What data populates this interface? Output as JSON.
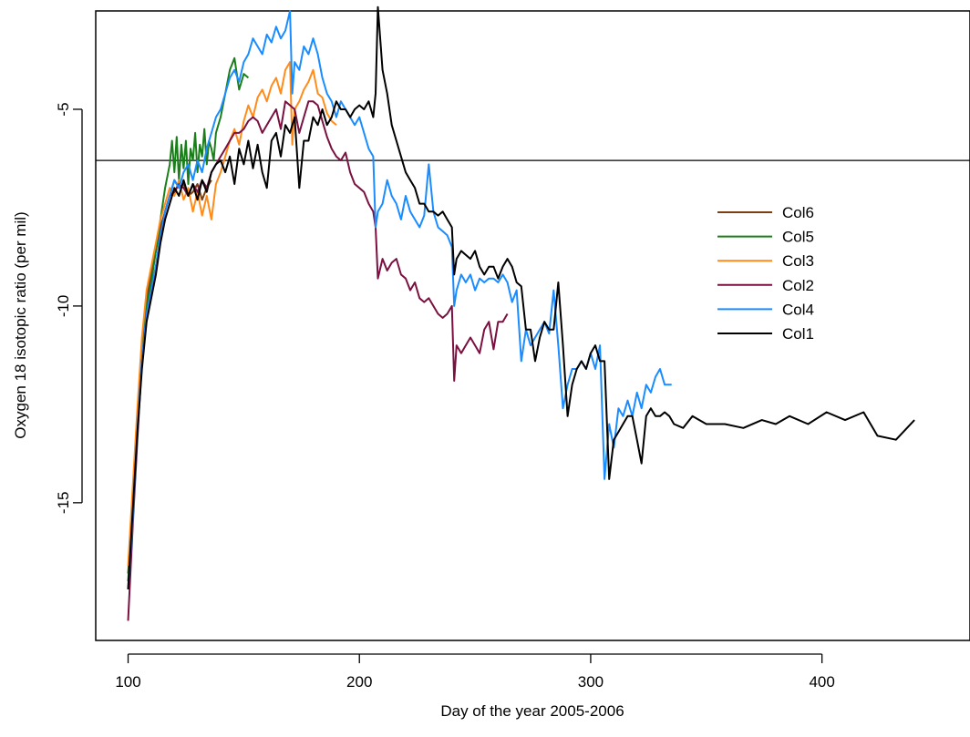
{
  "chart_data": {
    "type": "line",
    "title": "",
    "xlabel": "Day of the year 2005-2006",
    "ylabel": "Oxygen 18 isotopic ratio (per mil)",
    "xlim": [
      86,
      464
    ],
    "ylim": [
      -18.5,
      -2.5
    ],
    "xticks": [
      100,
      200,
      300,
      400
    ],
    "yticks": [
      -15,
      -10,
      -5
    ],
    "grid": false,
    "legend_position": "right",
    "reference_line": {
      "y": -6.3
    },
    "series": [
      {
        "name": "Col6",
        "color": "#7b3f12",
        "x": [
          100,
          102,
          104,
          106,
          108,
          110,
          112,
          114,
          116,
          118,
          120,
          122,
          124,
          126,
          128,
          130,
          132,
          134,
          136
        ],
        "y": [
          -16.8,
          -15.0,
          -12.8,
          -11.0,
          -9.8,
          -9.2,
          -8.6,
          -8.0,
          -7.6,
          -7.2,
          -6.8,
          -7.0,
          -6.9,
          -7.2,
          -7.1,
          -6.9,
          -7.3,
          -7.0,
          -6.8
        ]
      },
      {
        "name": "Col5",
        "color": "#1a7f1a",
        "x": [
          100,
          102,
          104,
          106,
          108,
          110,
          112,
          114,
          116,
          118,
          119,
          120,
          121,
          122,
          123,
          124,
          125,
          126,
          127,
          128,
          129,
          130,
          131,
          132,
          133,
          134,
          135,
          136,
          137,
          138,
          140,
          142,
          144,
          146,
          148,
          150,
          152
        ],
        "y": [
          -17.0,
          -15.2,
          -13.0,
          -11.2,
          -10.0,
          -9.4,
          -8.6,
          -7.8,
          -7.0,
          -6.4,
          -5.8,
          -6.6,
          -5.7,
          -6.8,
          -5.9,
          -6.5,
          -5.8,
          -6.9,
          -6.0,
          -6.3,
          -5.6,
          -6.6,
          -5.9,
          -6.2,
          -5.5,
          -6.4,
          -5.8,
          -6.0,
          -6.3,
          -5.6,
          -5.2,
          -4.6,
          -4.0,
          -3.7,
          -4.5,
          -4.1,
          -4.2
        ]
      },
      {
        "name": "Col3",
        "color": "#ff8c1a",
        "x": [
          100,
          102,
          104,
          106,
          108,
          110,
          112,
          114,
          116,
          118,
          120,
          122,
          124,
          126,
          128,
          130,
          132,
          134,
          136,
          138,
          140,
          142,
          144,
          146,
          148,
          150,
          152,
          154,
          156,
          158,
          160,
          162,
          164,
          166,
          168,
          170,
          171,
          172,
          174,
          176,
          178,
          180,
          182,
          184,
          186,
          188,
          190
        ],
        "y": [
          -16.6,
          -14.6,
          -12.6,
          -10.8,
          -9.6,
          -9.0,
          -8.4,
          -7.8,
          -7.4,
          -7.0,
          -7.2,
          -6.8,
          -7.3,
          -7.0,
          -7.6,
          -7.1,
          -7.7,
          -7.2,
          -7.8,
          -6.9,
          -6.6,
          -6.2,
          -5.8,
          -5.5,
          -5.9,
          -5.3,
          -4.9,
          -5.2,
          -4.7,
          -4.5,
          -4.8,
          -4.4,
          -4.2,
          -4.6,
          -4.0,
          -3.8,
          -5.9,
          -5.0,
          -4.8,
          -4.5,
          -4.3,
          -4.0,
          -4.6,
          -4.7,
          -5.1,
          -5.3,
          -5.4
        ]
      },
      {
        "name": "Col2",
        "color": "#7a1040",
        "x": [
          100,
          102,
          104,
          106,
          108,
          110,
          112,
          114,
          116,
          118,
          120,
          122,
          124,
          126,
          128,
          130,
          132,
          134,
          136,
          138,
          140,
          142,
          144,
          146,
          148,
          150,
          152,
          154,
          156,
          158,
          160,
          162,
          164,
          166,
          168,
          170,
          172,
          174,
          176,
          178,
          180,
          182,
          184,
          186,
          188,
          190,
          192,
          194,
          196,
          198,
          200,
          202,
          204,
          206,
          207,
          208,
          210,
          212,
          214,
          216,
          218,
          220,
          222,
          224,
          226,
          228,
          230,
          232,
          234,
          236,
          238,
          240,
          241,
          242,
          244,
          246,
          248,
          250,
          252,
          254,
          256,
          258,
          260,
          262,
          264
        ],
        "y": [
          -18.0,
          -15.6,
          -13.4,
          -11.4,
          -10.2,
          -9.6,
          -9.0,
          -8.2,
          -7.6,
          -7.2,
          -7.1,
          -6.9,
          -7.0,
          -7.2,
          -6.9,
          -7.1,
          -6.8,
          -7.0,
          -6.6,
          -6.4,
          -6.2,
          -6.0,
          -5.8,
          -5.6,
          -5.6,
          -5.5,
          -5.3,
          -5.2,
          -5.3,
          -5.6,
          -5.4,
          -5.2,
          -5.0,
          -5.5,
          -4.8,
          -4.9,
          -5.0,
          -5.6,
          -5.2,
          -4.8,
          -4.8,
          -4.9,
          -5.3,
          -5.7,
          -6.0,
          -6.2,
          -6.3,
          -6.1,
          -6.6,
          -6.9,
          -7.0,
          -7.1,
          -7.4,
          -7.6,
          -8.0,
          -9.3,
          -8.8,
          -9.1,
          -8.9,
          -8.8,
          -9.2,
          -9.3,
          -9.6,
          -9.4,
          -9.8,
          -9.9,
          -9.8,
          -10.0,
          -10.2,
          -10.3,
          -10.2,
          -10.0,
          -11.9,
          -11.0,
          -11.2,
          -11.0,
          -10.8,
          -11.0,
          -11.2,
          -10.6,
          -10.4,
          -11.1,
          -10.4,
          -10.4,
          -10.2
        ]
      },
      {
        "name": "Col4",
        "color": "#1a8cff",
        "x": [
          100,
          102,
          104,
          106,
          108,
          110,
          112,
          114,
          116,
          118,
          120,
          122,
          124,
          126,
          128,
          130,
          132,
          134,
          136,
          138,
          140,
          142,
          144,
          146,
          148,
          150,
          152,
          154,
          156,
          158,
          160,
          162,
          164,
          166,
          168,
          170,
          171,
          172,
          174,
          176,
          178,
          180,
          182,
          184,
          186,
          188,
          190,
          192,
          194,
          196,
          198,
          200,
          202,
          204,
          206,
          207,
          208,
          210,
          212,
          214,
          216,
          218,
          220,
          222,
          224,
          226,
          228,
          230,
          232,
          234,
          236,
          238,
          240,
          241,
          242,
          244,
          246,
          248,
          250,
          252,
          254,
          256,
          258,
          260,
          262,
          264,
          266,
          268,
          270,
          272,
          274,
          276,
          278,
          280,
          282,
          284,
          286,
          288,
          290,
          292,
          294,
          296,
          298,
          300,
          302,
          304,
          306,
          308,
          310,
          312,
          314,
          316,
          318,
          320,
          322,
          324,
          326,
          328,
          330,
          332,
          334,
          335
        ],
        "y": [
          -17.2,
          -15.4,
          -13.2,
          -11.4,
          -10.2,
          -9.6,
          -9.0,
          -8.2,
          -7.6,
          -7.2,
          -6.8,
          -7.0,
          -6.6,
          -6.4,
          -6.8,
          -6.3,
          -6.6,
          -6.0,
          -5.6,
          -5.2,
          -5.0,
          -4.6,
          -4.2,
          -4.0,
          -4.3,
          -3.8,
          -3.6,
          -3.2,
          -3.4,
          -3.6,
          -3.1,
          -3.3,
          -2.9,
          -3.2,
          -3.0,
          -2.5,
          -4.6,
          -3.8,
          -4.0,
          -3.4,
          -3.6,
          -3.2,
          -3.6,
          -4.2,
          -4.6,
          -4.8,
          -5.2,
          -4.8,
          -5.0,
          -5.2,
          -5.4,
          -5.2,
          -5.6,
          -6.0,
          -6.2,
          -8.0,
          -7.6,
          -7.4,
          -6.8,
          -7.2,
          -7.4,
          -7.8,
          -7.2,
          -7.6,
          -7.8,
          -8.0,
          -7.7,
          -6.4,
          -7.6,
          -8.0,
          -8.1,
          -8.2,
          -8.5,
          -10.0,
          -9.6,
          -9.2,
          -9.4,
          -9.2,
          -9.6,
          -9.3,
          -9.4,
          -9.3,
          -9.3,
          -9.4,
          -9.2,
          -9.4,
          -9.9,
          -9.6,
          -11.4,
          -10.6,
          -11.0,
          -10.8,
          -10.6,
          -10.4,
          -10.7,
          -9.6,
          -11.0,
          -12.6,
          -12.0,
          -11.6,
          -11.6,
          -11.4,
          -11.6,
          -11.2,
          -11.6,
          -11.0,
          -14.4,
          -13.0,
          -13.6,
          -12.6,
          -12.8,
          -12.4,
          -12.8,
          -12.2,
          -12.6,
          -12.0,
          -12.2,
          -11.8,
          -11.6,
          -12.0,
          -12.0,
          -12.0
        ]
      },
      {
        "name": "Col1",
        "color": "#000000",
        "x": [
          100,
          102,
          104,
          106,
          108,
          110,
          112,
          114,
          116,
          118,
          120,
          122,
          124,
          126,
          128,
          130,
          132,
          134,
          136,
          138,
          140,
          142,
          144,
          146,
          148,
          150,
          152,
          154,
          156,
          158,
          160,
          162,
          164,
          166,
          168,
          170,
          172,
          174,
          176,
          178,
          180,
          182,
          184,
          186,
          188,
          190,
          192,
          194,
          196,
          198,
          200,
          202,
          204,
          206,
          207,
          208,
          210,
          212,
          214,
          216,
          218,
          220,
          222,
          224,
          226,
          228,
          230,
          232,
          234,
          236,
          238,
          240,
          241,
          242,
          244,
          246,
          248,
          250,
          252,
          254,
          256,
          258,
          260,
          262,
          264,
          266,
          268,
          270,
          272,
          274,
          276,
          278,
          280,
          282,
          284,
          286,
          288,
          290,
          292,
          294,
          296,
          298,
          300,
          302,
          304,
          306,
          308,
          310,
          312,
          314,
          316,
          318,
          320,
          322,
          324,
          326,
          328,
          330,
          332,
          334,
          336,
          340,
          344,
          350,
          358,
          366,
          374,
          380,
          386,
          394,
          402,
          410,
          418,
          424,
          432,
          440
        ],
        "y": [
          -17.2,
          -15.2,
          -13.2,
          -11.6,
          -10.4,
          -9.8,
          -9.2,
          -8.4,
          -7.8,
          -7.4,
          -7.0,
          -7.2,
          -6.8,
          -7.2,
          -6.9,
          -7.3,
          -6.8,
          -7.1,
          -6.6,
          -6.4,
          -6.3,
          -6.6,
          -6.2,
          -6.9,
          -6.0,
          -6.4,
          -5.8,
          -6.5,
          -5.9,
          -6.6,
          -7.0,
          -5.8,
          -5.6,
          -6.2,
          -5.4,
          -5.6,
          -5.2,
          -7.0,
          -5.8,
          -5.8,
          -5.2,
          -5.4,
          -5.0,
          -5.4,
          -5.2,
          -4.8,
          -5.0,
          -5.0,
          -5.2,
          -5.0,
          -4.9,
          -5.0,
          -4.8,
          -5.2,
          -4.6,
          -2.4,
          -4.0,
          -4.6,
          -5.4,
          -5.8,
          -6.2,
          -6.6,
          -6.8,
          -7.0,
          -7.4,
          -7.4,
          -7.6,
          -7.6,
          -7.7,
          -7.6,
          -7.8,
          -8.0,
          -9.2,
          -8.8,
          -8.6,
          -8.7,
          -8.8,
          -8.6,
          -9.0,
          -9.2,
          -9.0,
          -9.0,
          -9.3,
          -9.0,
          -8.8,
          -9.0,
          -9.4,
          -9.5,
          -10.6,
          -10.6,
          -11.4,
          -10.8,
          -10.4,
          -10.6,
          -10.6,
          -9.4,
          -11.0,
          -12.8,
          -12.0,
          -11.6,
          -11.4,
          -11.6,
          -11.2,
          -11.0,
          -11.4,
          -11.4,
          -14.4,
          -13.4,
          -13.2,
          -13.0,
          -12.8,
          -12.8,
          -13.4,
          -14.0,
          -12.8,
          -12.6,
          -12.8,
          -12.8,
          -12.7,
          -12.8,
          -13.0,
          -13.1,
          -12.8,
          -13.0,
          -13.0,
          -13.1,
          -12.9,
          -13.0,
          -12.8,
          -13.0,
          -12.7,
          -12.9,
          -12.7,
          -13.3,
          -13.4,
          -12.9
        ]
      }
    ]
  }
}
